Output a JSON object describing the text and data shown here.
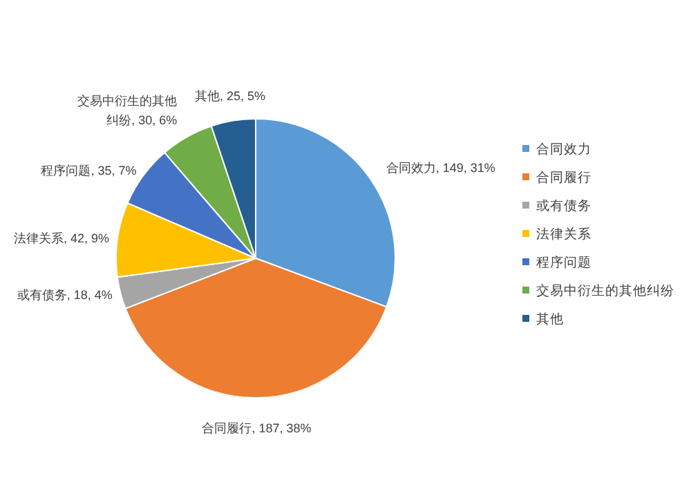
{
  "chart_data": {
    "type": "pie",
    "categories": [
      "合同效力",
      "合同履行",
      "或有债务",
      "法律关系",
      "程序问题",
      "交易中衍生的其他纠纷",
      "其他"
    ],
    "values": [
      149,
      187,
      18,
      42,
      35,
      30,
      25
    ],
    "colors": [
      "#5b9bd5",
      "#ed7d31",
      "#a5a5a5",
      "#ffc000",
      "#4472c4",
      "#70ad47",
      "#255e91"
    ],
    "value_labels": [
      "合同效力, 149, 31%",
      "合同履行, 187, 38%",
      "或有债务, 18, 4%",
      "法律关系, 42, 9%",
      "程序问题, 35, 7%",
      "交易中衍生的其他纠纷, 30, 6%",
      "其他, 25, 5%"
    ],
    "legend": "right"
  }
}
